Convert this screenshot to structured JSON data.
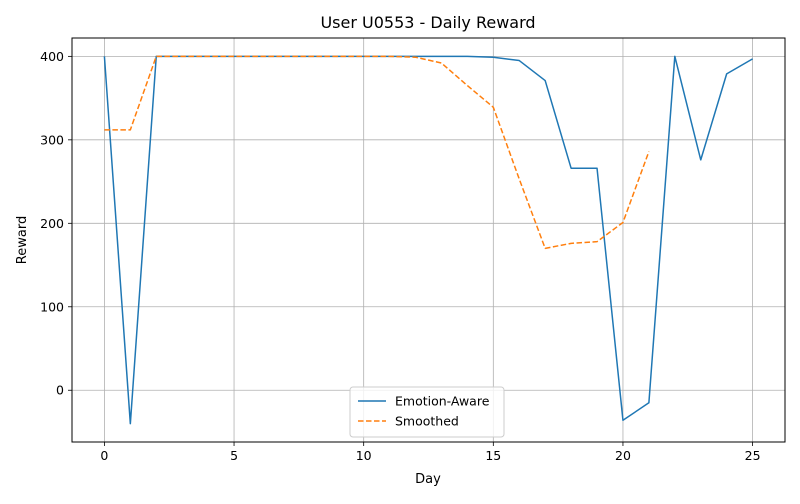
{
  "chart_data": {
    "type": "line",
    "title": "User U0553 - Daily Reward",
    "xlabel": "Day",
    "ylabel": "Reward",
    "xlim": [
      -1.25,
      26.25
    ],
    "ylim": [
      -62,
      422
    ],
    "xticks": [
      0,
      5,
      10,
      15,
      20,
      25
    ],
    "yticks": [
      0,
      100,
      200,
      300,
      400
    ],
    "grid": true,
    "legend_position": "bottom-center",
    "series": [
      {
        "name": "Emotion-Aware",
        "color": "#1f77b4",
        "style": "solid",
        "x": [
          0,
          1,
          2,
          3,
          4,
          5,
          6,
          7,
          8,
          9,
          10,
          11,
          12,
          13,
          14,
          15,
          16,
          17,
          18,
          19,
          20,
          21,
          22,
          23,
          24,
          25
        ],
        "y": [
          400,
          -40,
          400,
          400,
          400,
          400,
          400,
          400,
          400,
          400,
          400,
          400,
          400,
          400,
          400,
          399,
          395,
          371,
          266,
          266,
          -36,
          -15,
          400,
          276,
          379,
          397
        ]
      },
      {
        "name": "Smoothed",
        "color": "#ff7f0e",
        "style": "dashed",
        "x": [
          0,
          1,
          2,
          3,
          4,
          5,
          6,
          7,
          8,
          9,
          10,
          11,
          12,
          13,
          14,
          15,
          16,
          17,
          18,
          19,
          20,
          21
        ],
        "y": [
          312,
          312,
          400,
          400,
          400,
          400,
          400,
          400,
          400,
          400,
          400,
          400,
          399,
          392,
          365,
          339,
          253,
          170,
          176,
          178,
          201,
          286
        ]
      }
    ]
  }
}
